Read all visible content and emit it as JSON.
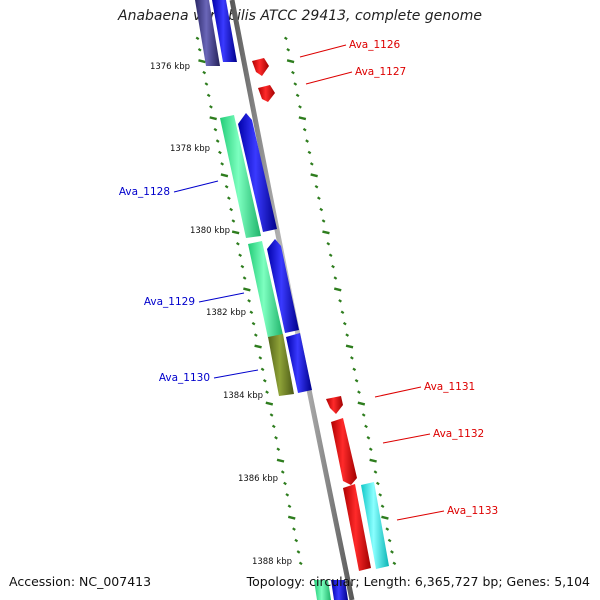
{
  "title": "Anabaena variabilis ATCC 29413, complete genome",
  "footer": {
    "accession": "Accession: NC_007413",
    "topology": "Topology: circular; Length: 6,365,727 bp; Genes: 5,104"
  },
  "colors": {
    "backbone": "#7a7a7a",
    "ticks": "#2e7d1e",
    "forward_label": "#dd0000",
    "reverse_label": "#0000cc",
    "cds_forward": "#ee0000",
    "cds_reverse": "#0000dd",
    "cog_cyan": "#22e8e8",
    "cog_green": "#2ee88e",
    "cog_olive": "#6b7d22",
    "cog_purple": "#3f3b82"
  },
  "axis_labels": [
    "1376 kbp",
    "1378 kbp",
    "1380 kbp",
    "1382 kbp",
    "1384 kbp",
    "1386 kbp",
    "1388 kbp"
  ],
  "genes": [
    {
      "label": "Ava_1126",
      "strand": "forward"
    },
    {
      "label": "Ava_1127",
      "strand": "forward"
    },
    {
      "label": "Ava_1128",
      "strand": "reverse"
    },
    {
      "label": "Ava_1129",
      "strand": "reverse"
    },
    {
      "label": "Ava_1130",
      "strand": "reverse"
    },
    {
      "label": "Ava_1131",
      "strand": "forward"
    },
    {
      "label": "Ava_1132",
      "strand": "forward"
    },
    {
      "label": "Ava_1133",
      "strand": "forward"
    }
  ]
}
